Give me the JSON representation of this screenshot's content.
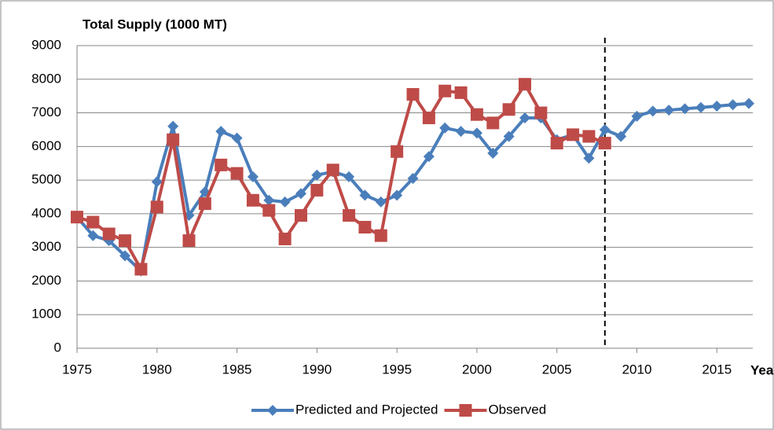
{
  "chart_data": {
    "type": "line",
    "title": "Total Supply (1000 MT)",
    "x_label": "Year",
    "x": [
      1975,
      1976,
      1977,
      1978,
      1979,
      1980,
      1981,
      1982,
      1983,
      1984,
      1985,
      1986,
      1987,
      1988,
      1989,
      1990,
      1991,
      1992,
      1993,
      1994,
      1995,
      1996,
      1997,
      1998,
      1999,
      2000,
      2001,
      2002,
      2003,
      2004,
      2005,
      2006,
      2007,
      2008,
      2009,
      2010,
      2011,
      2012,
      2013,
      2014,
      2015,
      2016,
      2017
    ],
    "series": [
      {
        "name": "Predicted and Projected",
        "color": "#4a7ebb",
        "marker": "diamond",
        "values": [
          3900,
          3350,
          3200,
          2750,
          2300,
          4950,
          6600,
          3950,
          4650,
          6450,
          6250,
          5100,
          4400,
          4350,
          4600,
          5150,
          5250,
          5100,
          4550,
          4350,
          4550,
          5050,
          5700,
          6550,
          6450,
          6400,
          5800,
          6300,
          6850,
          6850,
          6200,
          6350,
          5650,
          6500,
          6300,
          6900,
          7050,
          7080,
          7120,
          7160,
          7200,
          7240,
          7280
        ]
      },
      {
        "name": "Observed",
        "color": "#be4b48",
        "marker": "square",
        "values": [
          3900,
          3750,
          3400,
          3200,
          2350,
          4200,
          6200,
          3200,
          4300,
          5450,
          5200,
          4400,
          4100,
          3250,
          3950,
          4700,
          5300,
          3950,
          3600,
          3350,
          5850,
          7550,
          6850,
          7650,
          7600,
          6950,
          6700,
          7100,
          7850,
          7000,
          6100,
          6350,
          6300,
          6100,
          null,
          null,
          null,
          null,
          null,
          null,
          null,
          null,
          null
        ]
      }
    ],
    "vline": 2008,
    "xlim": [
      1975,
      2017
    ],
    "xticks": [
      1975,
      1980,
      1985,
      1990,
      1995,
      2000,
      2005,
      2010,
      2015
    ],
    "ylim": [
      0,
      9000
    ],
    "yticks": [
      0,
      1000,
      2000,
      3000,
      4000,
      5000,
      6000,
      7000,
      8000,
      9000
    ],
    "grid": true,
    "legend": "bottom"
  }
}
